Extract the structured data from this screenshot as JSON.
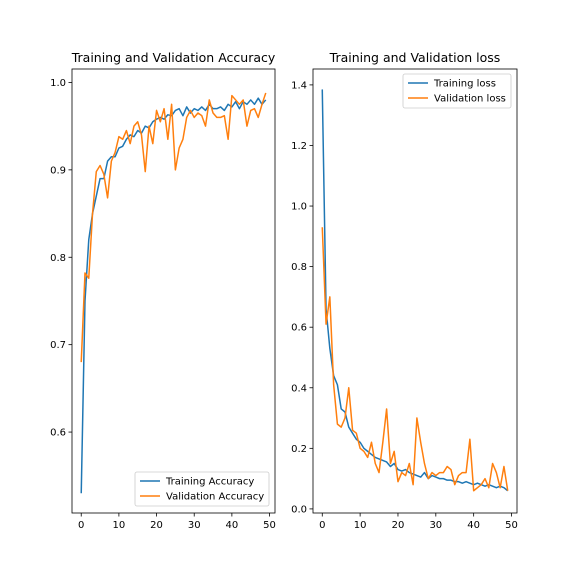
{
  "chart_data": [
    {
      "type": "line",
      "title": "Training and Validation Accuracy",
      "xlabel": "",
      "ylabel": "",
      "xlim": [
        -2.45,
        51.45
      ],
      "ylim": [
        0.5074,
        1.0154
      ],
      "xticks": [
        0,
        10,
        20,
        30,
        40,
        50
      ],
      "yticks": [
        0.6,
        0.7,
        0.8,
        0.9,
        1.0
      ],
      "ytick_labels": [
        "0.6",
        "0.7",
        "0.8",
        "0.9",
        "1.0"
      ],
      "legend": "lower-right",
      "grid": false,
      "series": [
        {
          "name": "Training Accuracy",
          "color": "#1f77b4",
          "x": [
            0,
            1,
            2,
            3,
            4,
            5,
            6,
            7,
            8,
            9,
            10,
            11,
            12,
            13,
            14,
            15,
            16,
            17,
            18,
            19,
            20,
            21,
            22,
            23,
            24,
            25,
            26,
            27,
            28,
            29,
            30,
            31,
            32,
            33,
            34,
            35,
            36,
            37,
            38,
            39,
            40,
            41,
            42,
            43,
            44,
            45,
            46,
            47,
            48,
            49
          ],
          "y": [
            0.53,
            0.75,
            0.82,
            0.85,
            0.87,
            0.89,
            0.89,
            0.91,
            0.915,
            0.915,
            0.925,
            0.927,
            0.935,
            0.94,
            0.938,
            0.945,
            0.942,
            0.95,
            0.948,
            0.955,
            0.958,
            0.96,
            0.958,
            0.963,
            0.962,
            0.968,
            0.97,
            0.962,
            0.972,
            0.965,
            0.97,
            0.968,
            0.972,
            0.968,
            0.975,
            0.97,
            0.97,
            0.972,
            0.968,
            0.975,
            0.972,
            0.978,
            0.97,
            0.978,
            0.975,
            0.98,
            0.975,
            0.982,
            0.975,
            0.98
          ]
        },
        {
          "name": "Validation Accuracy",
          "color": "#ff7f0e",
          "x": [
            0,
            1,
            2,
            3,
            4,
            5,
            6,
            7,
            8,
            9,
            10,
            11,
            12,
            13,
            14,
            15,
            16,
            17,
            18,
            19,
            20,
            21,
            22,
            23,
            24,
            25,
            26,
            27,
            28,
            29,
            30,
            31,
            32,
            33,
            34,
            35,
            36,
            37,
            38,
            39,
            40,
            41,
            42,
            43,
            44,
            45,
            46,
            47,
            48,
            49
          ],
          "y": [
            0.68,
            0.782,
            0.776,
            0.85,
            0.898,
            0.905,
            0.895,
            0.868,
            0.91,
            0.92,
            0.938,
            0.935,
            0.945,
            0.93,
            0.95,
            0.955,
            0.94,
            0.898,
            0.95,
            0.93,
            0.968,
            0.955,
            0.97,
            0.935,
            0.975,
            0.9,
            0.925,
            0.935,
            0.96,
            0.968,
            0.96,
            0.965,
            0.962,
            0.95,
            0.98,
            0.965,
            0.96,
            0.96,
            0.962,
            0.935,
            0.985,
            0.98,
            0.975,
            0.98,
            0.95,
            0.968,
            0.97,
            0.96,
            0.975,
            0.988
          ]
        }
      ]
    },
    {
      "type": "line",
      "title": "Training and Validation loss",
      "xlabel": "",
      "ylabel": "",
      "xlim": [
        -2.45,
        51.45
      ],
      "ylim": [
        -0.0135,
        1.4525
      ],
      "xticks": [
        0,
        10,
        20,
        30,
        40,
        50
      ],
      "yticks": [
        0.0,
        0.2,
        0.4,
        0.6,
        0.8,
        1.0,
        1.2,
        1.4
      ],
      "ytick_labels": [
        "0.0",
        "0.2",
        "0.4",
        "0.6",
        "0.8",
        "1.0",
        "1.2",
        "1.4"
      ],
      "legend": "top-right",
      "grid": false,
      "series": [
        {
          "name": "Training loss",
          "color": "#1f77b4",
          "x": [
            0,
            1,
            2,
            3,
            4,
            5,
            6,
            7,
            8,
            9,
            10,
            11,
            12,
            13,
            14,
            15,
            16,
            17,
            18,
            19,
            20,
            21,
            22,
            23,
            24,
            25,
            26,
            27,
            28,
            29,
            30,
            31,
            32,
            33,
            34,
            35,
            36,
            37,
            38,
            39,
            40,
            41,
            42,
            43,
            44,
            45,
            46,
            47,
            48,
            49
          ],
          "y": [
            1.385,
            0.66,
            0.53,
            0.44,
            0.41,
            0.33,
            0.32,
            0.27,
            0.25,
            0.23,
            0.22,
            0.2,
            0.19,
            0.18,
            0.17,
            0.165,
            0.16,
            0.155,
            0.14,
            0.15,
            0.13,
            0.125,
            0.13,
            0.12,
            0.115,
            0.11,
            0.105,
            0.12,
            0.1,
            0.11,
            0.105,
            0.1,
            0.1,
            0.095,
            0.095,
            0.09,
            0.09,
            0.085,
            0.09,
            0.085,
            0.08,
            0.085,
            0.08,
            0.075,
            0.08,
            0.075,
            0.07,
            0.075,
            0.07,
            0.06
          ]
        },
        {
          "name": "Validation loss",
          "color": "#ff7f0e",
          "x": [
            0,
            1,
            2,
            3,
            4,
            5,
            6,
            7,
            8,
            9,
            10,
            11,
            12,
            13,
            14,
            15,
            16,
            17,
            18,
            19,
            20,
            21,
            22,
            23,
            24,
            25,
            26,
            27,
            28,
            29,
            30,
            31,
            32,
            33,
            34,
            35,
            36,
            37,
            38,
            39,
            40,
            41,
            42,
            43,
            44,
            45,
            46,
            47,
            48,
            49
          ],
          "y": [
            0.93,
            0.61,
            0.7,
            0.41,
            0.28,
            0.27,
            0.3,
            0.4,
            0.26,
            0.25,
            0.2,
            0.19,
            0.17,
            0.22,
            0.15,
            0.12,
            0.22,
            0.33,
            0.15,
            0.19,
            0.09,
            0.12,
            0.11,
            0.15,
            0.08,
            0.3,
            0.22,
            0.15,
            0.1,
            0.12,
            0.11,
            0.12,
            0.12,
            0.14,
            0.13,
            0.08,
            0.11,
            0.12,
            0.12,
            0.23,
            0.06,
            0.07,
            0.08,
            0.1,
            0.07,
            0.15,
            0.12,
            0.07,
            0.14,
            0.06
          ]
        }
      ]
    }
  ]
}
